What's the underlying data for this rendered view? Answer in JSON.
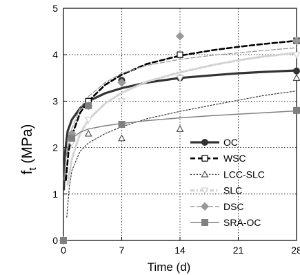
{
  "chart_data": {
    "type": "line",
    "title": "",
    "xlabel": "Time (d)",
    "ylabel_main": "f",
    "ylabel_sub": "t",
    "ylabel_unit": " (MPa)",
    "xlim": [
      0,
      28
    ],
    "ylim": [
      0,
      5
    ],
    "xticks": [
      0,
      7,
      14,
      21,
      28
    ],
    "yticks": [
      0,
      1,
      2,
      3,
      4,
      5
    ],
    "grid": "dotted, at x = 7, 14, 21 and y = 1, 2, 3, 4",
    "legend_position": "lower-right",
    "series": [
      {
        "name": "OC",
        "color": "#333333",
        "marker": "circle-filled",
        "line": "solid-thick",
        "points": {
          "x": [
            0,
            1,
            3,
            7,
            14,
            28
          ],
          "y": [
            0,
            2.2,
            3.0,
            3.45,
            3.5,
            3.65
          ]
        },
        "curve": {
          "x": [
            0.05,
            0.2,
            0.5,
            1,
            2,
            3,
            5,
            7,
            10,
            14,
            18,
            21,
            24,
            28
          ],
          "y": [
            1.1,
            1.9,
            2.35,
            2.6,
            2.85,
            3.0,
            3.17,
            3.28,
            3.4,
            3.5,
            3.56,
            3.6,
            3.63,
            3.66
          ]
        }
      },
      {
        "name": "WSC",
        "color": "#000000",
        "marker": "square-open",
        "line": "dashed-thick",
        "points": {
          "x": [
            0,
            1,
            3,
            14,
            28
          ],
          "y": [
            0,
            2.2,
            3.0,
            4.0,
            4.3
          ]
        },
        "curve": {
          "x": [
            0.3,
            0.6,
            1,
            2,
            3,
            5,
            7,
            10,
            14,
            18,
            21,
            24,
            28
          ],
          "y": [
            1.3,
            1.9,
            2.25,
            2.75,
            3.0,
            3.35,
            3.57,
            3.8,
            3.98,
            4.1,
            4.17,
            4.23,
            4.3
          ]
        }
      },
      {
        "name": "LCC-SLC",
        "color": "#333333",
        "marker": "triangle-open",
        "line": "dotted-thin",
        "points": {
          "x": [
            0,
            1,
            3,
            7,
            14,
            28
          ],
          "y": [
            0,
            2.2,
            2.3,
            2.2,
            2.4,
            3.5
          ]
        },
        "curve": {
          "x": [
            0.4,
            0.7,
            1,
            2,
            3,
            5,
            7,
            10,
            14,
            18,
            21,
            24,
            28
          ],
          "y": [
            0.5,
            1.15,
            1.5,
            1.92,
            2.1,
            2.3,
            2.45,
            2.62,
            2.78,
            2.92,
            3.02,
            3.12,
            3.22
          ]
        }
      },
      {
        "name": "SLC",
        "color": "#d3d3d3",
        "marker": "triangle-down-open",
        "line": "dash-dot-thick",
        "points": {
          "x": [
            0,
            1,
            3,
            7,
            14,
            28
          ],
          "y": [
            0,
            2.1,
            2.6,
            3.0,
            3.5,
            4.0
          ]
        },
        "curve": {
          "x": [
            0.5,
            1,
            2,
            3,
            5,
            7,
            10,
            14,
            18,
            21,
            24,
            28
          ],
          "y": [
            1.2,
            1.75,
            2.3,
            2.6,
            2.95,
            3.18,
            3.42,
            3.62,
            3.78,
            3.88,
            3.96,
            4.04
          ]
        }
      },
      {
        "name": "DSC",
        "color": "#999999",
        "marker": "diamond-filled",
        "line": "dashed-thin",
        "points": {
          "x": [
            0,
            1,
            3,
            7,
            14,
            28
          ],
          "y": [
            0,
            2.3,
            2.9,
            3.4,
            4.4,
            4.3
          ]
        },
        "curve": {
          "x": [
            0.5,
            1,
            2,
            3,
            5,
            7,
            10,
            14,
            18,
            21,
            24,
            28
          ],
          "y": [
            2.0,
            2.4,
            2.85,
            3.1,
            3.4,
            3.6,
            3.77,
            3.9,
            3.99,
            4.04,
            4.09,
            4.15
          ]
        }
      },
      {
        "name": "SRA-OC",
        "color": "#808080",
        "marker": "square-filled",
        "line": "solid-thin",
        "points": {
          "x": [
            0,
            1,
            3,
            7,
            28
          ],
          "y": [
            0,
            2.2,
            2.9,
            2.5,
            2.8
          ]
        },
        "curve": {
          "x": [
            0.1,
            0.3,
            0.6,
            1,
            2,
            3,
            5,
            7,
            10,
            14,
            18,
            21,
            24,
            28
          ],
          "y": [
            1.3,
            1.8,
            2.05,
            2.2,
            2.33,
            2.4,
            2.47,
            2.52,
            2.58,
            2.64,
            2.69,
            2.72,
            2.75,
            2.79
          ]
        }
      }
    ]
  }
}
